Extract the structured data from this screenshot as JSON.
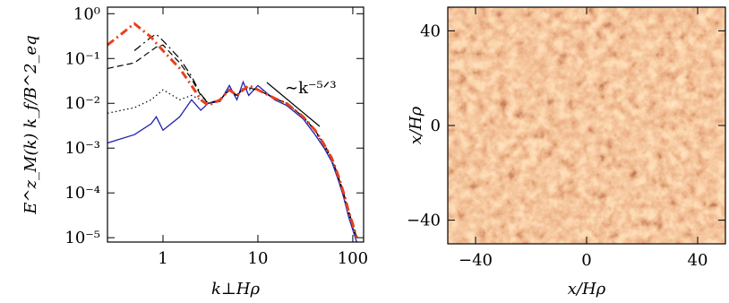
{
  "chart_data": [
    {
      "type": "line",
      "log_x": true,
      "log_y": true,
      "xlabel": "k⊥Hρ",
      "ylabel": "E^z_M(k)  k_f/B^2_eq",
      "annotation": "∼k⁻⁵ᐟ³",
      "xlim": [
        0.26,
        130
      ],
      "ylim": [
        8e-06,
        1.4
      ],
      "xticks": [
        1,
        10,
        100
      ],
      "yticks": [
        {
          "value": 1,
          "label": "10⁰"
        },
        {
          "value": 0.1,
          "label": "10⁻¹"
        },
        {
          "value": 0.01,
          "label": "10⁻²"
        },
        {
          "value": 0.001,
          "label": "10⁻³"
        },
        {
          "value": 0.0001,
          "label": "10⁻⁴"
        },
        {
          "value": 1e-05,
          "label": "10⁻⁵"
        }
      ],
      "x": [
        0.26,
        0.5,
        0.75,
        0.85,
        1,
        1.5,
        2,
        2.5,
        3,
        4,
        5,
        6,
        7,
        8,
        10,
        15,
        20,
        30,
        40,
        50,
        60,
        70,
        80,
        90,
        100,
        110
      ],
      "series": [
        {
          "color": "#1f1fb4",
          "dash": "solid",
          "width": 1.3,
          "values": [
            0.0013,
            0.002,
            0.0035,
            0.005,
            0.0025,
            0.005,
            0.012,
            0.007,
            0.01,
            0.011,
            0.025,
            0.012,
            0.03,
            0.015,
            0.025,
            0.012,
            0.009,
            0.0045,
            0.002,
            0.001,
            0.0005,
            0.0002,
            8e-05,
            3e-05,
            1.5e-05,
            8e-06
          ]
        },
        {
          "color": "#000000",
          "dash": "dotted",
          "width": 1.2,
          "values": [
            0.006,
            0.008,
            0.012,
            0.015,
            0.02,
            0.012,
            0.015,
            0.012,
            0.01,
            0.012,
            0.02,
            0.014,
            0.022,
            0.02,
            0.02,
            0.013,
            0.01,
            0.005,
            0.0024,
            0.0011,
            0.00055,
            0.00022,
            9e-05,
            3.5e-05,
            1.7e-05,
            9e-06
          ]
        },
        {
          "color": "#000000",
          "dash": "dashed",
          "width": 1.2,
          "values": [
            0.06,
            0.08,
            0.15,
            0.18,
            0.2,
            0.08,
            0.035,
            0.015,
            0.01,
            0.012,
            0.02,
            0.015,
            0.02,
            0.022,
            0.02,
            0.013,
            0.01,
            0.005,
            0.0025,
            0.0012,
            0.0006,
            0.00024,
            0.0001,
            4e-05,
            2e-05,
            1e-05
          ]
        },
        {
          "color": "#000000",
          "dash": "dashdot",
          "width": 1.2,
          "values": [
            null,
            0.15,
            0.3,
            0.35,
            0.25,
            0.1,
            0.04,
            0.016,
            0.01,
            0.012,
            0.02,
            0.015,
            0.021,
            0.022,
            0.02,
            0.013,
            0.01,
            0.005,
            0.0025,
            0.0012,
            0.0006,
            0.00024,
            0.0001,
            4e-05,
            2e-05,
            1e-05
          ]
        },
        {
          "color": "#e8401c",
          "dash": "dashdot",
          "width": 3,
          "values": [
            0.2,
            0.6,
            0.3,
            0.22,
            0.15,
            0.06,
            0.025,
            0.012,
            0.009,
            0.012,
            0.02,
            0.015,
            0.02,
            0.025,
            0.02,
            0.013,
            0.01,
            0.005,
            0.0025,
            0.0012,
            0.0006,
            0.00025,
            0.0001,
            4e-05,
            2e-05,
            1e-05
          ]
        }
      ]
    },
    {
      "type": "image",
      "xlabel": "x/Hρ",
      "ylabel": "x/Hρ",
      "xlim": [
        -50,
        50
      ],
      "ylim": [
        -50,
        50
      ],
      "xticks": [
        {
          "value": -40,
          "label": "−40"
        },
        0,
        40
      ],
      "yticks": [
        {
          "value": -40,
          "label": "−40"
        },
        0,
        40
      ]
    }
  ]
}
